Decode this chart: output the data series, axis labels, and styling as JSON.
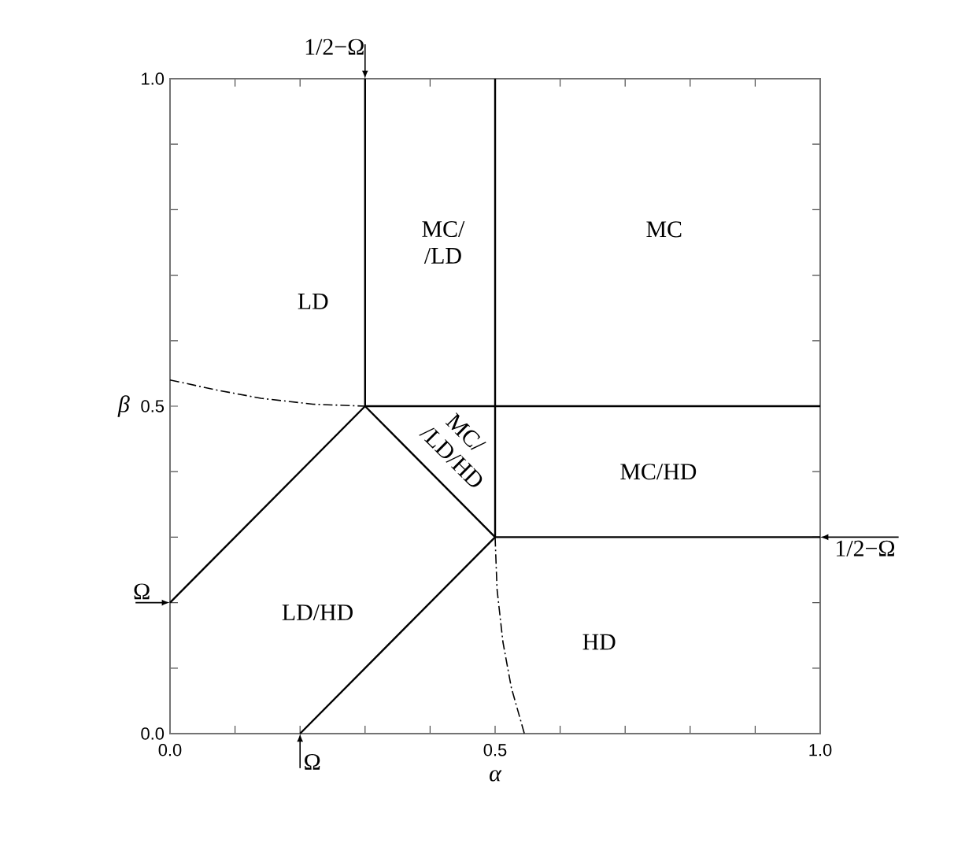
{
  "chart_data": {
    "type": "line",
    "xlabel": "α",
    "ylabel": "β",
    "xlim": [
      0.0,
      1.0
    ],
    "ylim": [
      0.0,
      1.0
    ],
    "xticks": [
      {
        "value": 0.0,
        "label": "0.0"
      },
      {
        "value": 0.1,
        "label": null
      },
      {
        "value": 0.2,
        "label": null
      },
      {
        "value": 0.3,
        "label": null
      },
      {
        "value": 0.4,
        "label": null
      },
      {
        "value": 0.5,
        "label": "0.5"
      },
      {
        "value": 0.6,
        "label": null
      },
      {
        "value": 0.7,
        "label": null
      },
      {
        "value": 0.8,
        "label": null
      },
      {
        "value": 0.9,
        "label": null
      },
      {
        "value": 1.0,
        "label": "1.0"
      }
    ],
    "yticks": [
      {
        "value": 0.0,
        "label": "0.0"
      },
      {
        "value": 0.1,
        "label": null
      },
      {
        "value": 0.2,
        "label": null
      },
      {
        "value": 0.3,
        "label": null
      },
      {
        "value": 0.4,
        "label": null
      },
      {
        "value": 0.5,
        "label": "0.5"
      },
      {
        "value": 0.6,
        "label": null
      },
      {
        "value": 0.7,
        "label": null
      },
      {
        "value": 0.8,
        "label": null
      },
      {
        "value": 0.9,
        "label": null
      },
      {
        "value": 1.0,
        "label": "1.0"
      }
    ],
    "grid": false,
    "marker": "none",
    "series": [
      {
        "color": "#000000",
        "line_style": "solid",
        "x": [
          0.3,
          0.3
        ],
        "values": [
          0.5,
          1.0
        ]
      },
      {
        "color": "#000000",
        "line_style": "solid",
        "x": [
          0.5,
          0.5
        ],
        "values": [
          0.3,
          1.0
        ]
      },
      {
        "color": "#000000",
        "line_style": "solid",
        "x": [
          0.3,
          1.0
        ],
        "values": [
          0.5,
          0.5
        ]
      },
      {
        "color": "#000000",
        "line_style": "solid",
        "x": [
          0.5,
          1.0
        ],
        "values": [
          0.3,
          0.3
        ]
      },
      {
        "color": "#000000",
        "line_style": "solid",
        "x": [
          0.0,
          0.3
        ],
        "values": [
          0.2,
          0.5
        ]
      },
      {
        "color": "#000000",
        "line_style": "solid",
        "x": [
          0.2,
          0.5
        ],
        "values": [
          0.0,
          0.3
        ]
      },
      {
        "color": "#000000",
        "line_style": "solid",
        "x": [
          0.3,
          0.5
        ],
        "values": [
          0.5,
          0.3
        ]
      },
      {
        "color": "#000000",
        "line_style": "dashdot",
        "x": [
          0.0,
          0.07,
          0.14,
          0.22,
          0.3
        ],
        "values": [
          0.54,
          0.525,
          0.512,
          0.503,
          0.5
        ]
      },
      {
        "color": "#000000",
        "line_style": "dashdot",
        "x": [
          0.5,
          0.503,
          0.512,
          0.525,
          0.545
        ],
        "values": [
          0.3,
          0.22,
          0.14,
          0.07,
          0.0
        ]
      }
    ],
    "annotations": [
      "LD",
      "MC/ /LD",
      "MC",
      "MC/ /LD/HD",
      "MC/HD",
      "LD/HD",
      "HD",
      {
        "text": "1/2−Ω",
        "x": 0.3,
        "y": 1.0
      },
      {
        "text": "1/2−Ω",
        "x": 1.0,
        "y": 0.3
      },
      {
        "text": "Ω",
        "x": 0.0,
        "y": 0.2
      },
      {
        "text": "Ω",
        "x": 0.2,
        "y": 0.0
      }
    ]
  }
}
